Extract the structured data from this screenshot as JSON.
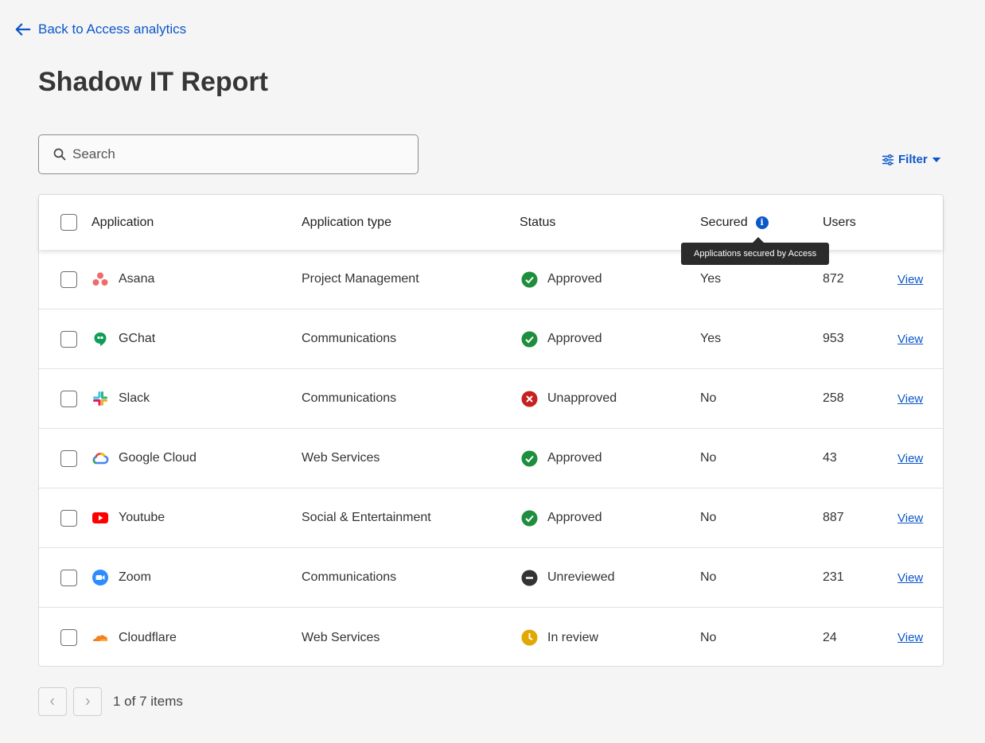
{
  "nav": {
    "back_label": "Back to Access analytics"
  },
  "page": {
    "title": "Shadow IT Report"
  },
  "search": {
    "placeholder": "Search"
  },
  "filter": {
    "label": "Filter"
  },
  "table": {
    "columns": {
      "application": "Application",
      "type": "Application type",
      "status": "Status",
      "secured": "Secured",
      "users": "Users"
    },
    "tooltip": "Applications secured by Access",
    "view_label": "View",
    "rows": [
      {
        "name": "Asana",
        "icon": "asana-icon",
        "type": "Project Management",
        "status": "Approved",
        "status_kind": "approved",
        "secured": "Yes",
        "users": "872"
      },
      {
        "name": "GChat",
        "icon": "gchat-icon",
        "type": "Communications",
        "status": "Approved",
        "status_kind": "approved",
        "secured": "Yes",
        "users": "953"
      },
      {
        "name": "Slack",
        "icon": "slack-icon",
        "type": "Communications",
        "status": "Unapproved",
        "status_kind": "unapproved",
        "secured": "No",
        "users": "258"
      },
      {
        "name": "Google Cloud",
        "icon": "google-cloud-icon",
        "type": "Web Services",
        "status": "Approved",
        "status_kind": "approved",
        "secured": "No",
        "users": "43"
      },
      {
        "name": "Youtube",
        "icon": "youtube-icon",
        "type": "Social & Entertainment",
        "status": "Approved",
        "status_kind": "approved",
        "secured": "No",
        "users": "887"
      },
      {
        "name": "Zoom",
        "icon": "zoom-icon",
        "type": "Communications",
        "status": "Unreviewed",
        "status_kind": "unreviewed",
        "secured": "No",
        "users": "231"
      },
      {
        "name": "Cloudflare",
        "icon": "cloudflare-icon",
        "type": "Web Services",
        "status": "In review",
        "status_kind": "in-review",
        "secured": "No",
        "users": "24"
      }
    ]
  },
  "pagination": {
    "info": "1 of 7 items"
  },
  "colors": {
    "link": "#0b57c9",
    "approved": "#1e8e3e",
    "unapproved": "#c5221f",
    "unreviewed": "#333333",
    "in_review": "#e0a800"
  }
}
